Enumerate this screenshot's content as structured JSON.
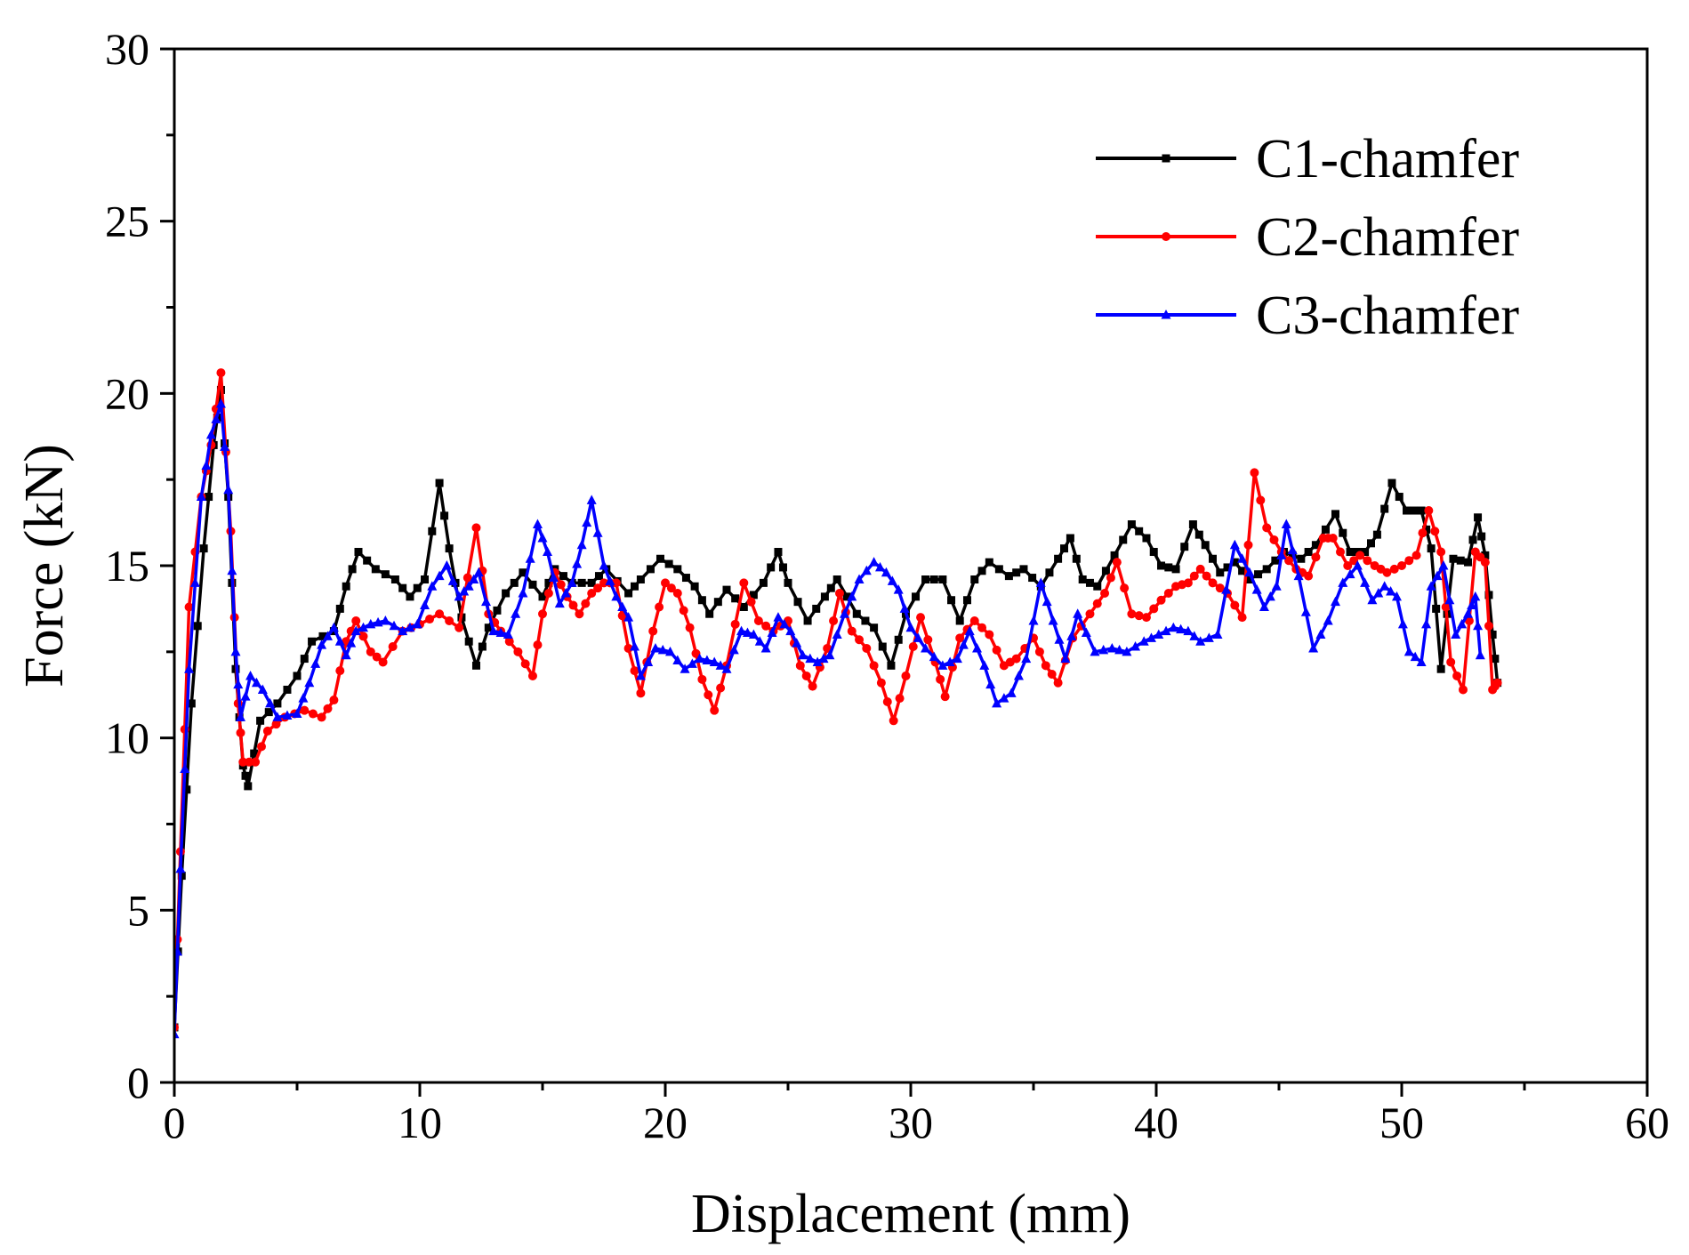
{
  "chart_data": {
    "type": "line",
    "title": "",
    "xlabel": "Displacement (mm)",
    "ylabel": "Force (kN)",
    "xlim": [
      0,
      60
    ],
    "ylim": [
      0,
      30
    ],
    "x_ticks": [
      0,
      10,
      20,
      30,
      40,
      50,
      60
    ],
    "y_ticks": [
      0,
      5,
      10,
      15,
      20,
      25,
      30
    ],
    "grid": false,
    "legend_position": "top-right",
    "series": [
      {
        "name": "C1-chamfer",
        "color": "#000000",
        "marker": "square",
        "points": [
          [
            0,
            1.6
          ],
          [
            0.3,
            6
          ],
          [
            0.7,
            11
          ],
          [
            1.2,
            15.5
          ],
          [
            1.6,
            18.5
          ],
          [
            1.9,
            20.1
          ],
          [
            2.2,
            17
          ],
          [
            2.5,
            12
          ],
          [
            2.8,
            9.2
          ],
          [
            3.0,
            8.6
          ],
          [
            3.5,
            10.5
          ],
          [
            4.2,
            11
          ],
          [
            5.0,
            11.8
          ],
          [
            5.6,
            12.8
          ],
          [
            6.5,
            13.1
          ],
          [
            7.0,
            14.4
          ],
          [
            7.5,
            15.4
          ],
          [
            8.2,
            14.9
          ],
          [
            9.0,
            14.6
          ],
          [
            9.6,
            14.1
          ],
          [
            10.2,
            14.6
          ],
          [
            10.8,
            17.4
          ],
          [
            11.2,
            15.5
          ],
          [
            11.7,
            13.5
          ],
          [
            12.3,
            12.1
          ],
          [
            12.8,
            13.2
          ],
          [
            13.5,
            14.2
          ],
          [
            14.2,
            14.8
          ],
          [
            15.0,
            14.1
          ],
          [
            15.5,
            14.9
          ],
          [
            16.2,
            14.5
          ],
          [
            17.0,
            14.5
          ],
          [
            17.6,
            14.9
          ],
          [
            18.5,
            14.2
          ],
          [
            19.0,
            14.6
          ],
          [
            19.8,
            15.2
          ],
          [
            20.5,
            14.9
          ],
          [
            21.2,
            14.4
          ],
          [
            21.8,
            13.6
          ],
          [
            22.5,
            14.3
          ],
          [
            23.2,
            13.8
          ],
          [
            24.0,
            14.5
          ],
          [
            24.6,
            15.4
          ],
          [
            25.0,
            14.5
          ],
          [
            25.8,
            13.4
          ],
          [
            26.5,
            14.1
          ],
          [
            27.0,
            14.6
          ],
          [
            27.8,
            13.6
          ],
          [
            28.5,
            13.2
          ],
          [
            29.2,
            12.1
          ],
          [
            29.8,
            13.6
          ],
          [
            30.6,
            14.6
          ],
          [
            31.3,
            14.6
          ],
          [
            32.0,
            13.4
          ],
          [
            32.6,
            14.6
          ],
          [
            33.2,
            15.1
          ],
          [
            34.0,
            14.7
          ],
          [
            34.6,
            14.9
          ],
          [
            35.3,
            14.4
          ],
          [
            36.0,
            15.2
          ],
          [
            36.5,
            15.8
          ],
          [
            37.0,
            14.6
          ],
          [
            37.6,
            14.4
          ],
          [
            38.3,
            15.3
          ],
          [
            39.0,
            16.2
          ],
          [
            39.6,
            15.8
          ],
          [
            40.2,
            15.0
          ],
          [
            40.8,
            14.9
          ],
          [
            41.5,
            16.2
          ],
          [
            42.0,
            15.6
          ],
          [
            42.6,
            14.8
          ],
          [
            43.2,
            15.1
          ],
          [
            43.8,
            14.6
          ],
          [
            44.5,
            14.9
          ],
          [
            45.2,
            15.4
          ],
          [
            45.9,
            15.2
          ],
          [
            46.5,
            15.6
          ],
          [
            47.3,
            16.5
          ],
          [
            47.9,
            15.4
          ],
          [
            48.5,
            15.4
          ],
          [
            49.0,
            15.9
          ],
          [
            49.6,
            17.4
          ],
          [
            50.2,
            16.6
          ],
          [
            50.8,
            16.6
          ],
          [
            51.2,
            15.5
          ],
          [
            51.6,
            12.0
          ],
          [
            52.1,
            15.2
          ],
          [
            52.7,
            15.1
          ],
          [
            53.1,
            16.4
          ],
          [
            53.4,
            15.3
          ],
          [
            53.7,
            13.0
          ],
          [
            53.9,
            11.6
          ]
        ]
      },
      {
        "name": "C2-chamfer",
        "color": "#ff0000",
        "marker": "circle",
        "points": [
          [
            0,
            1.6
          ],
          [
            0.25,
            6.7
          ],
          [
            0.6,
            13.8
          ],
          [
            1.1,
            17
          ],
          [
            1.5,
            18.5
          ],
          [
            1.9,
            20.6
          ],
          [
            2.3,
            16
          ],
          [
            2.6,
            11
          ],
          [
            2.8,
            9.3
          ],
          [
            3.3,
            9.3
          ],
          [
            3.8,
            10.2
          ],
          [
            4.5,
            10.6
          ],
          [
            5.3,
            10.8
          ],
          [
            6.0,
            10.6
          ],
          [
            6.5,
            11.1
          ],
          [
            7.0,
            12.8
          ],
          [
            7.4,
            13.4
          ],
          [
            8.0,
            12.5
          ],
          [
            8.5,
            12.2
          ],
          [
            9.3,
            13.1
          ],
          [
            10.0,
            13.3
          ],
          [
            10.8,
            13.6
          ],
          [
            11.6,
            13.2
          ],
          [
            12.3,
            16.1
          ],
          [
            12.8,
            13.6
          ],
          [
            13.3,
            13.1
          ],
          [
            14.0,
            12.5
          ],
          [
            14.6,
            11.8
          ],
          [
            15.0,
            13.6
          ],
          [
            15.5,
            14.8
          ],
          [
            16.0,
            14.1
          ],
          [
            16.5,
            13.6
          ],
          [
            17.0,
            14.2
          ],
          [
            17.5,
            14.5
          ],
          [
            18.0,
            14.5
          ],
          [
            18.5,
            12.6
          ],
          [
            19.0,
            11.3
          ],
          [
            19.5,
            13.1
          ],
          [
            20.0,
            14.5
          ],
          [
            20.5,
            14.2
          ],
          [
            21.0,
            13.2
          ],
          [
            21.5,
            11.7
          ],
          [
            22.0,
            10.8
          ],
          [
            22.5,
            12.1
          ],
          [
            23.2,
            14.5
          ],
          [
            23.8,
            13.4
          ],
          [
            24.4,
            13.1
          ],
          [
            25.0,
            13.4
          ],
          [
            25.5,
            12.1
          ],
          [
            26.0,
            11.5
          ],
          [
            26.6,
            12.6
          ],
          [
            27.1,
            14.2
          ],
          [
            27.6,
            13.1
          ],
          [
            28.2,
            12.6
          ],
          [
            28.8,
            11.6
          ],
          [
            29.3,
            10.5
          ],
          [
            29.8,
            11.8
          ],
          [
            30.4,
            13.5
          ],
          [
            31.0,
            12.2
          ],
          [
            31.4,
            11.2
          ],
          [
            32.0,
            12.9
          ],
          [
            32.6,
            13.4
          ],
          [
            33.2,
            13.0
          ],
          [
            33.8,
            12.1
          ],
          [
            34.3,
            12.3
          ],
          [
            35.0,
            12.9
          ],
          [
            35.5,
            12.1
          ],
          [
            36.0,
            11.6
          ],
          [
            36.6,
            12.9
          ],
          [
            37.3,
            13.6
          ],
          [
            37.9,
            14.2
          ],
          [
            38.4,
            15.1
          ],
          [
            39.0,
            13.6
          ],
          [
            39.6,
            13.5
          ],
          [
            40.2,
            14.0
          ],
          [
            40.8,
            14.4
          ],
          [
            41.3,
            14.5
          ],
          [
            41.8,
            14.9
          ],
          [
            42.3,
            14.5
          ],
          [
            42.9,
            14.2
          ],
          [
            43.5,
            13.5
          ],
          [
            44.0,
            17.7
          ],
          [
            44.5,
            16.1
          ],
          [
            45.1,
            15.4
          ],
          [
            45.7,
            14.9
          ],
          [
            46.2,
            14.7
          ],
          [
            46.8,
            15.8
          ],
          [
            47.2,
            15.8
          ],
          [
            47.8,
            15.0
          ],
          [
            48.3,
            15.3
          ],
          [
            48.9,
            15.0
          ],
          [
            49.4,
            14.8
          ],
          [
            50.0,
            15.0
          ],
          [
            50.6,
            15.3
          ],
          [
            51.1,
            16.6
          ],
          [
            51.6,
            15.4
          ],
          [
            52.0,
            12.2
          ],
          [
            52.5,
            11.4
          ],
          [
            53.0,
            15.4
          ],
          [
            53.4,
            15.1
          ],
          [
            53.7,
            11.4
          ],
          [
            53.9,
            11.6
          ]
        ]
      },
      {
        "name": "C3-chamfer",
        "color": "#0000ff",
        "marker": "triangle",
        "points": [
          [
            0,
            1.4
          ],
          [
            0.25,
            6.2
          ],
          [
            0.6,
            12
          ],
          [
            1.1,
            17
          ],
          [
            1.5,
            18.8
          ],
          [
            1.9,
            19.7
          ],
          [
            2.2,
            17.2
          ],
          [
            2.5,
            12.5
          ],
          [
            2.7,
            10.6
          ],
          [
            3.1,
            11.8
          ],
          [
            3.6,
            11.4
          ],
          [
            4.2,
            10.6
          ],
          [
            5.0,
            10.7
          ],
          [
            5.5,
            11.6
          ],
          [
            6.0,
            12.7
          ],
          [
            6.5,
            13.2
          ],
          [
            7.0,
            12.4
          ],
          [
            7.4,
            13.1
          ],
          [
            8.0,
            13.3
          ],
          [
            8.6,
            13.4
          ],
          [
            9.3,
            13.1
          ],
          [
            9.9,
            13.3
          ],
          [
            10.5,
            14.4
          ],
          [
            11.1,
            15.0
          ],
          [
            11.6,
            14.1
          ],
          [
            12.0,
            14.4
          ],
          [
            12.4,
            14.8
          ],
          [
            13.0,
            13.1
          ],
          [
            13.6,
            13.0
          ],
          [
            14.2,
            14.2
          ],
          [
            14.8,
            16.2
          ],
          [
            15.2,
            15.4
          ],
          [
            15.7,
            13.9
          ],
          [
            16.2,
            14.5
          ],
          [
            16.6,
            15.6
          ],
          [
            17.0,
            16.9
          ],
          [
            17.5,
            15.0
          ],
          [
            18.0,
            14.1
          ],
          [
            18.5,
            13.5
          ],
          [
            19.0,
            11.8
          ],
          [
            19.6,
            12.6
          ],
          [
            20.2,
            12.5
          ],
          [
            20.8,
            12.0
          ],
          [
            21.4,
            12.3
          ],
          [
            22.0,
            12.2
          ],
          [
            22.5,
            12.0
          ],
          [
            23.1,
            13.1
          ],
          [
            23.6,
            13.0
          ],
          [
            24.1,
            12.6
          ],
          [
            24.6,
            13.5
          ],
          [
            25.1,
            13.1
          ],
          [
            25.6,
            12.4
          ],
          [
            26.2,
            12.2
          ],
          [
            26.7,
            12.4
          ],
          [
            27.3,
            13.6
          ],
          [
            27.9,
            14.6
          ],
          [
            28.5,
            15.1
          ],
          [
            29.0,
            14.8
          ],
          [
            29.5,
            14.3
          ],
          [
            30.0,
            13.2
          ],
          [
            30.6,
            12.6
          ],
          [
            31.3,
            12.1
          ],
          [
            31.9,
            12.3
          ],
          [
            32.4,
            13.1
          ],
          [
            33.0,
            12.1
          ],
          [
            33.5,
            11.0
          ],
          [
            34.1,
            11.3
          ],
          [
            34.7,
            12.3
          ],
          [
            35.3,
            14.5
          ],
          [
            35.8,
            13.4
          ],
          [
            36.3,
            12.3
          ],
          [
            36.8,
            13.6
          ],
          [
            37.5,
            12.5
          ],
          [
            38.2,
            12.6
          ],
          [
            38.8,
            12.5
          ],
          [
            39.5,
            12.8
          ],
          [
            40.1,
            13.0
          ],
          [
            40.7,
            13.2
          ],
          [
            41.3,
            13.1
          ],
          [
            41.8,
            12.8
          ],
          [
            42.5,
            13.0
          ],
          [
            43.2,
            15.6
          ],
          [
            43.8,
            14.8
          ],
          [
            44.4,
            13.8
          ],
          [
            44.9,
            14.4
          ],
          [
            45.3,
            16.2
          ],
          [
            45.8,
            14.7
          ],
          [
            46.4,
            12.6
          ],
          [
            47.0,
            13.4
          ],
          [
            47.6,
            14.5
          ],
          [
            48.2,
            15.0
          ],
          [
            48.8,
            14.0
          ],
          [
            49.3,
            14.4
          ],
          [
            49.8,
            14.1
          ],
          [
            50.3,
            12.5
          ],
          [
            50.8,
            12.2
          ],
          [
            51.2,
            14.4
          ],
          [
            51.7,
            15.0
          ],
          [
            52.2,
            13.0
          ],
          [
            52.7,
            13.6
          ],
          [
            53.0,
            14.1
          ],
          [
            53.2,
            12.4
          ]
        ]
      }
    ]
  }
}
